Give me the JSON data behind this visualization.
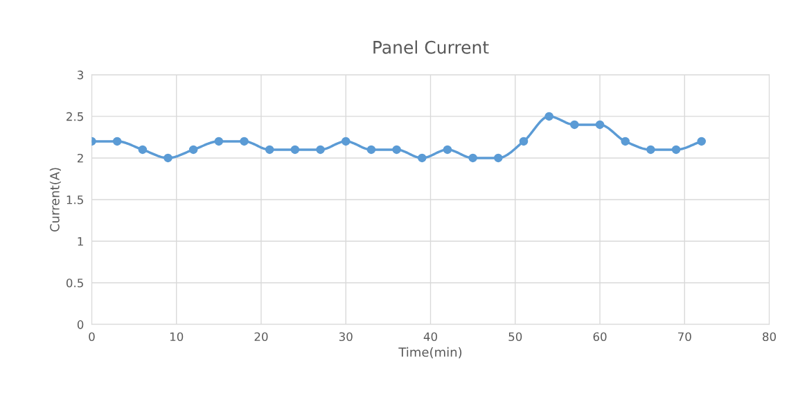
{
  "chart_data": {
    "type": "line",
    "title": "Panel Current",
    "xlabel": "Time(min)",
    "ylabel": "Current(A)",
    "x": [
      0,
      3,
      6,
      9,
      12,
      15,
      18,
      21,
      24,
      27,
      30,
      33,
      36,
      39,
      42,
      45,
      48,
      51,
      54,
      57,
      60,
      63,
      66,
      69,
      72
    ],
    "series": [
      {
        "color": "#5b9bd5",
        "values": [
          2.2,
          2.2,
          2.1,
          2.0,
          2.1,
          2.2,
          2.2,
          2.1,
          2.1,
          2.1,
          2.2,
          2.1,
          2.1,
          2.0,
          2.1,
          2.0,
          2.0,
          2.2,
          2.5,
          2.4,
          2.4,
          2.2,
          2.1,
          2.1,
          2.2
        ]
      }
    ],
    "xlim": [
      0,
      80
    ],
    "xticks": [
      0,
      10,
      20,
      30,
      40,
      50,
      60,
      70,
      80
    ],
    "ylim": [
      0,
      3
    ],
    "yticks": [
      0,
      0.5,
      1,
      1.5,
      2,
      2.5,
      3
    ],
    "grid": true,
    "marker": "circle",
    "line_style": "solid",
    "legend": false
  }
}
